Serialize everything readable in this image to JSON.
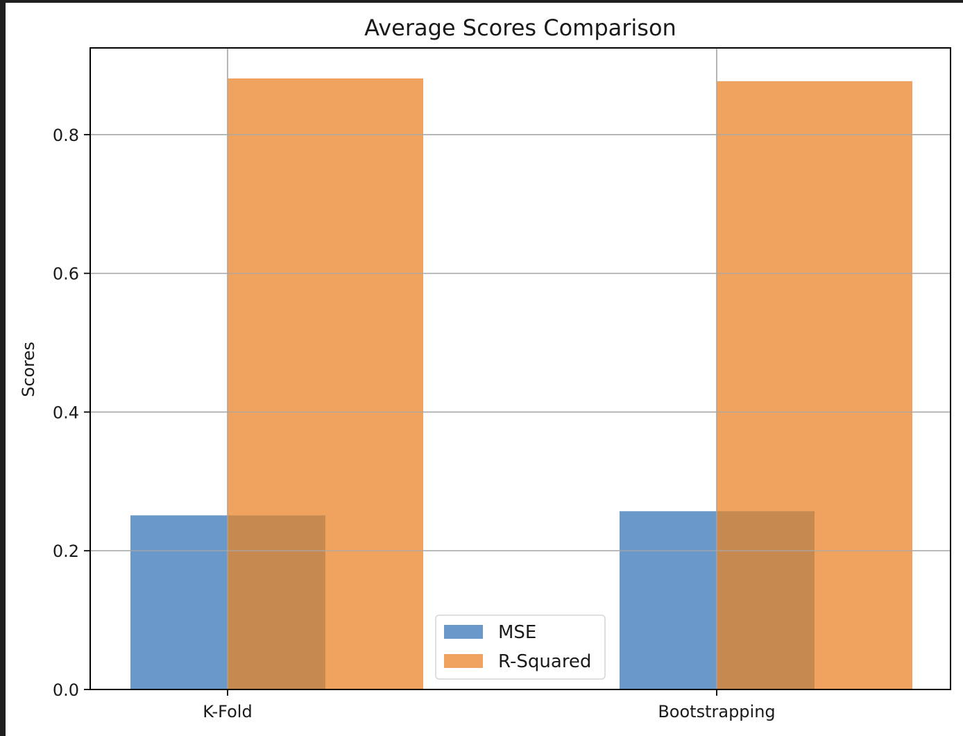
{
  "chart_data": {
    "type": "bar",
    "title": "Average Scores Comparison",
    "xlabel": "",
    "ylabel": "Scores",
    "categories": [
      "K-Fold",
      "Bootstrapping"
    ],
    "series": [
      {
        "name": "MSE",
        "values": [
          0.251,
          0.257
        ],
        "color": "#6a98c8"
      },
      {
        "name": "R-Squared",
        "values": [
          0.881,
          0.877
        ],
        "color": "#f0a35e"
      }
    ],
    "overlap_color": "#c68a50",
    "ylim": [
      0,
      0.925
    ],
    "yticks": [
      0.0,
      0.2,
      0.4,
      0.6,
      0.8
    ],
    "ytick_labels": [
      "0.0",
      "0.2",
      "0.4",
      "0.6",
      "0.8"
    ],
    "grid": true,
    "legend_position": "lower-center"
  }
}
